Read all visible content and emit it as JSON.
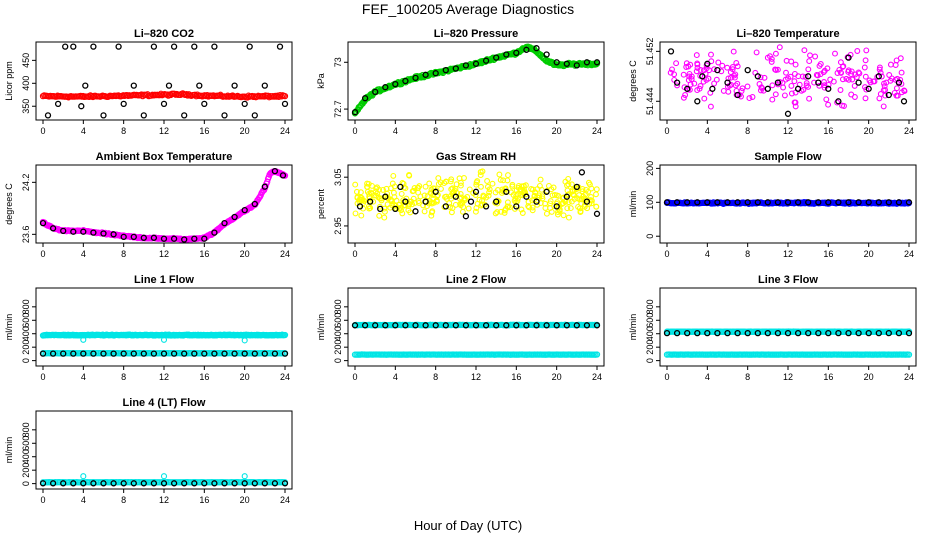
{
  "page": {
    "title": "FEF_100205  Average Diagnostics",
    "xlabel": "Hour of Day (UTC)"
  },
  "chart_data": [
    {
      "id": "co2",
      "type": "scatter",
      "title": "Li–820 CO2",
      "ylabel": "Licor ppm",
      "xlim": [
        0,
        24
      ],
      "xticks": [
        0,
        4,
        8,
        12,
        16,
        20,
        24
      ],
      "ylim": [
        320,
        490
      ],
      "yticks": [
        350,
        400,
        450
      ],
      "series": [
        {
          "kind": "band",
          "color": "#ff0000",
          "x": [
            0,
            4,
            8,
            12,
            14,
            16,
            20,
            24
          ],
          "y": [
            372,
            371,
            373,
            375,
            376,
            373,
            371,
            372
          ],
          "jitter": 3,
          "count": 200
        },
        {
          "kind": "points",
          "color": "#000000",
          "x": [
            0.5,
            1.5,
            2.2,
            3,
            3.8,
            4.2,
            5.0,
            6,
            7.5,
            8.0,
            9,
            10,
            11,
            12,
            12.5,
            13,
            14,
            15,
            15.5,
            16,
            17,
            18,
            19,
            20,
            20.5,
            21,
            22,
            23.5,
            24
          ],
          "y": [
            330,
            355,
            480,
            480,
            350,
            395,
            480,
            330,
            480,
            355,
            395,
            330,
            480,
            355,
            395,
            480,
            330,
            480,
            395,
            355,
            480,
            330,
            395,
            355,
            480,
            330,
            395,
            480,
            355
          ]
        }
      ]
    },
    {
      "id": "pressure",
      "type": "scatter",
      "title": "Li–820 Pressure",
      "ylabel": "kPa",
      "xlim": [
        0,
        24
      ],
      "xticks": [
        0,
        4,
        8,
        12,
        16,
        20,
        24
      ],
      "ylim": [
        72.63,
        73.13
      ],
      "yticks": [
        72.7,
        73.0
      ],
      "series": [
        {
          "kind": "band",
          "color": "#00cc00",
          "x": [
            0,
            1,
            2,
            4,
            6,
            8,
            10,
            12,
            14,
            16,
            17,
            18,
            19,
            20,
            22,
            24
          ],
          "y": [
            72.67,
            72.76,
            72.81,
            72.86,
            72.9,
            72.93,
            72.96,
            72.99,
            73.03,
            73.06,
            73.1,
            73.07,
            73.01,
            72.98,
            72.99,
            72.99
          ],
          "jitter": 0.012,
          "count": 320
        },
        {
          "kind": "points",
          "color": "#000000",
          "x": [
            0,
            1,
            2,
            3,
            4,
            5,
            6,
            7,
            8,
            9,
            10,
            11,
            12,
            13,
            14,
            15,
            16,
            17,
            18,
            19,
            20,
            21,
            22,
            23,
            24
          ],
          "y": [
            72.68,
            72.77,
            72.81,
            72.84,
            72.86,
            72.88,
            72.9,
            72.92,
            72.93,
            72.95,
            72.96,
            72.98,
            72.99,
            73.01,
            73.03,
            73.05,
            73.06,
            73.08,
            73.09,
            73.05,
            73.0,
            72.99,
            72.98,
            73.0,
            73.0
          ]
        }
      ]
    },
    {
      "id": "temperature",
      "type": "scatter",
      "title": "Li–820 Temperature",
      "ylabel": "degrees C",
      "xlim": [
        0,
        24
      ],
      "xticks": [
        0,
        4,
        8,
        12,
        16,
        20,
        24
      ],
      "ylim": [
        51.441,
        51.4535
      ],
      "yticks": [
        51.444,
        51.452
      ],
      "series": [
        {
          "kind": "cloud",
          "color": "#ff00ff",
          "xlo": 0.3,
          "xhi": 23.8,
          "ylo": 51.4415,
          "yhi": 51.4535,
          "count": 230
        },
        {
          "kind": "points",
          "color": "#000000",
          "x": [
            0.4,
            1,
            2,
            3,
            3.5,
            4,
            4.5,
            5,
            6,
            7,
            8,
            9,
            10,
            11,
            12,
            13,
            14,
            15,
            16,
            17,
            18,
            19,
            20,
            21,
            22,
            23,
            23.5
          ],
          "y": [
            51.452,
            51.447,
            51.446,
            51.444,
            51.448,
            51.45,
            51.446,
            51.449,
            51.447,
            51.445,
            51.449,
            51.448,
            51.446,
            51.447,
            51.442,
            51.446,
            51.448,
            51.447,
            51.446,
            51.444,
            51.451,
            51.447,
            51.446,
            51.448,
            51.445,
            51.447,
            51.444
          ]
        }
      ]
    },
    {
      "id": "ambient",
      "type": "scatter",
      "title": "Ambient Box Temperature",
      "ylabel": "degrees C",
      "xlim": [
        0,
        24
      ],
      "xticks": [
        0,
        4,
        8,
        12,
        16,
        20,
        24
      ],
      "ylim": [
        23.5,
        24.4
      ],
      "yticks": [
        23.6,
        24.2
      ],
      "series": [
        {
          "kind": "band",
          "color": "#ff00ff",
          "x": [
            0,
            1,
            2,
            4,
            6,
            8,
            10,
            12,
            13,
            14,
            16,
            17,
            18,
            20,
            21,
            22,
            22.5,
            23,
            24
          ],
          "y": [
            23.74,
            23.67,
            23.64,
            23.64,
            23.61,
            23.58,
            23.56,
            23.55,
            23.55,
            23.54,
            23.56,
            23.62,
            23.72,
            23.87,
            23.94,
            24.13,
            24.3,
            24.33,
            24.28
          ],
          "jitter": 0.012,
          "count": 300
        },
        {
          "kind": "points",
          "color": "#000000",
          "x": [
            0,
            1,
            2,
            3,
            4,
            5,
            6,
            7,
            8,
            9,
            10,
            11,
            12,
            13,
            14,
            15,
            16,
            17,
            18,
            19,
            20,
            21,
            22,
            23,
            23.8
          ],
          "y": [
            23.73,
            23.67,
            23.64,
            23.63,
            23.63,
            23.62,
            23.61,
            23.6,
            23.57,
            23.57,
            23.56,
            23.56,
            23.55,
            23.55,
            23.54,
            23.55,
            23.55,
            23.62,
            23.73,
            23.8,
            23.88,
            23.95,
            24.15,
            24.33,
            24.28
          ]
        }
      ]
    },
    {
      "id": "rh",
      "type": "scatter",
      "title": "Gas Stream RH",
      "ylabel": "percent",
      "xlim": [
        0,
        24
      ],
      "xticks": [
        0,
        4,
        8,
        12,
        16,
        20,
        24
      ],
      "ylim": [
        2.915,
        3.075
      ],
      "yticks": [
        2.95,
        3.05
      ],
      "series": [
        {
          "kind": "cloud",
          "color": "#ffff00",
          "xlo": 0,
          "xhi": 24,
          "ylo": 2.95,
          "yhi": 3.07,
          "count": 380
        },
        {
          "kind": "points",
          "color": "#000000",
          "x": [
            0.5,
            1.5,
            2.5,
            3,
            4,
            4.5,
            5,
            6,
            7,
            8,
            9,
            10,
            11,
            11.5,
            12,
            13,
            14,
            15,
            16,
            17,
            18,
            19,
            20,
            21,
            22,
            22.5,
            23,
            24
          ],
          "y": [
            2.99,
            3.0,
            2.985,
            3.01,
            2.985,
            3.03,
            3.0,
            2.98,
            3.0,
            3.02,
            2.99,
            3.01,
            2.97,
            3.0,
            3.02,
            2.99,
            3.0,
            3.02,
            2.99,
            3.01,
            3.0,
            3.02,
            2.99,
            3.01,
            3.03,
            3.06,
            3.0,
            2.975
          ]
        }
      ]
    },
    {
      "id": "sample",
      "type": "scatter",
      "title": "Sample Flow",
      "ylabel": "ml/min",
      "xlim": [
        0,
        24
      ],
      "xticks": [
        0,
        4,
        8,
        12,
        16,
        20,
        24
      ],
      "ylim": [
        -20,
        210
      ],
      "yticks": [
        0,
        100,
        200
      ],
      "series": [
        {
          "kind": "band",
          "color": "#0000ff",
          "x": [
            0,
            24
          ],
          "y": [
            98,
            98
          ],
          "jitter": 3,
          "count": 220
        },
        {
          "kind": "points",
          "color": "#000000",
          "x": [
            0,
            1,
            2,
            3,
            4,
            5,
            6,
            7,
            8,
            9,
            10,
            11,
            12,
            13,
            14,
            15,
            16,
            17,
            18,
            19,
            20,
            21,
            22,
            23,
            24
          ],
          "y": [
            100,
            100,
            100,
            100,
            100,
            100,
            100,
            100,
            100,
            100,
            100,
            100,
            100,
            100,
            100,
            100,
            100,
            100,
            100,
            100,
            100,
            100,
            100,
            100,
            100
          ]
        }
      ]
    },
    {
      "id": "line1",
      "type": "scatter",
      "title": "Line 1 Flow",
      "ylabel": "ml/min",
      "xlim": [
        0,
        24
      ],
      "xticks": [
        0,
        4,
        8,
        12,
        16,
        20,
        24
      ],
      "ylim": [
        -80,
        1080
      ],
      "yticks": [
        0,
        200,
        400,
        600,
        800
      ],
      "series": [
        {
          "kind": "band",
          "color": "#00e5e5",
          "x": [
            0,
            24
          ],
          "y": [
            380,
            380
          ],
          "jitter": 8,
          "count": 260
        },
        {
          "kind": "band",
          "color": "#00e5e5",
          "x": [
            0,
            24
          ],
          "y": [
            110,
            110
          ],
          "jitter": 2,
          "count": 160
        },
        {
          "kind": "points",
          "color": "#000000",
          "x": [
            0,
            1,
            2,
            3,
            4,
            5,
            6,
            7,
            8,
            9,
            10,
            11,
            12,
            13,
            14,
            15,
            16,
            17,
            18,
            19,
            20,
            21,
            22,
            23,
            24
          ],
          "y": [
            105,
            105,
            105,
            105,
            105,
            105,
            105,
            105,
            105,
            105,
            105,
            105,
            105,
            105,
            105,
            105,
            105,
            105,
            105,
            105,
            105,
            105,
            105,
            105,
            105
          ]
        },
        {
          "kind": "points",
          "color": "#00e5e5",
          "x": [
            4,
            12,
            20
          ],
          "y": [
            310,
            310,
            300
          ]
        }
      ]
    },
    {
      "id": "line2",
      "type": "scatter",
      "title": "Line 2 Flow",
      "ylabel": "ml/min",
      "xlim": [
        0,
        24
      ],
      "xticks": [
        0,
        4,
        8,
        12,
        16,
        20,
        24
      ],
      "ylim": [
        -80,
        1080
      ],
      "yticks": [
        0,
        200,
        400,
        600,
        800
      ],
      "series": [
        {
          "kind": "band",
          "color": "#00e5e5",
          "x": [
            0,
            24
          ],
          "y": [
            530,
            530
          ],
          "jitter": 4,
          "count": 200
        },
        {
          "kind": "band",
          "color": "#00e5e5",
          "x": [
            0,
            24
          ],
          "y": [
            90,
            90
          ],
          "jitter": 2,
          "count": 180
        },
        {
          "kind": "points",
          "color": "#000000",
          "x": [
            0,
            1,
            2,
            3,
            4,
            5,
            6,
            7,
            8,
            9,
            10,
            11,
            12,
            13,
            14,
            15,
            16,
            17,
            18,
            19,
            20,
            21,
            22,
            23,
            24
          ],
          "y": [
            525,
            525,
            525,
            525,
            525,
            525,
            525,
            525,
            525,
            525,
            525,
            525,
            525,
            525,
            525,
            525,
            525,
            525,
            525,
            525,
            525,
            525,
            525,
            525,
            525
          ]
        }
      ]
    },
    {
      "id": "line3",
      "type": "scatter",
      "title": "Line 3 Flow",
      "ylabel": "ml/min",
      "xlim": [
        0,
        24
      ],
      "xticks": [
        0,
        4,
        8,
        12,
        16,
        20,
        24
      ],
      "ylim": [
        -80,
        1080
      ],
      "yticks": [
        0,
        200,
        400,
        600,
        800
      ],
      "series": [
        {
          "kind": "band",
          "color": "#00e5e5",
          "x": [
            0,
            24
          ],
          "y": [
            430,
            430
          ],
          "jitter": 4,
          "count": 200
        },
        {
          "kind": "band",
          "color": "#00e5e5",
          "x": [
            0,
            24
          ],
          "y": [
            90,
            90
          ],
          "jitter": 2,
          "count": 180
        },
        {
          "kind": "points",
          "color": "#000000",
          "x": [
            0,
            1,
            2,
            3,
            4,
            5,
            6,
            7,
            8,
            9,
            10,
            11,
            12,
            13,
            14,
            15,
            16,
            17,
            18,
            19,
            20,
            21,
            22,
            23,
            24
          ],
          "y": [
            410,
            410,
            410,
            410,
            410,
            410,
            410,
            410,
            410,
            410,
            410,
            410,
            410,
            410,
            410,
            410,
            410,
            410,
            410,
            410,
            410,
            410,
            410,
            410,
            410
          ]
        }
      ]
    },
    {
      "id": "line4",
      "type": "scatter",
      "title": "Line 4 (LT) Flow",
      "ylabel": "ml/min",
      "xlim": [
        0,
        24
      ],
      "xticks": [
        0,
        4,
        8,
        12,
        16,
        20,
        24
      ],
      "ylim": [
        -80,
        1080
      ],
      "yticks": [
        0,
        200,
        400,
        600,
        800
      ],
      "series": [
        {
          "kind": "band",
          "color": "#00e5e5",
          "x": [
            0,
            24
          ],
          "y": [
            20,
            20
          ],
          "jitter": 2,
          "count": 160
        },
        {
          "kind": "points",
          "color": "#00e5e5",
          "x": [
            4,
            12,
            20
          ],
          "y": [
            110,
            110,
            110
          ]
        },
        {
          "kind": "points",
          "color": "#000000",
          "x": [
            0,
            1,
            2,
            3,
            4,
            5,
            6,
            7,
            8,
            9,
            10,
            11,
            12,
            13,
            14,
            15,
            16,
            17,
            18,
            19,
            20,
            21,
            22,
            23,
            24
          ],
          "y": [
            5,
            5,
            5,
            5,
            5,
            5,
            5,
            5,
            5,
            5,
            5,
            5,
            5,
            5,
            5,
            5,
            5,
            5,
            5,
            5,
            5,
            5,
            5,
            5,
            5
          ]
        }
      ]
    }
  ]
}
